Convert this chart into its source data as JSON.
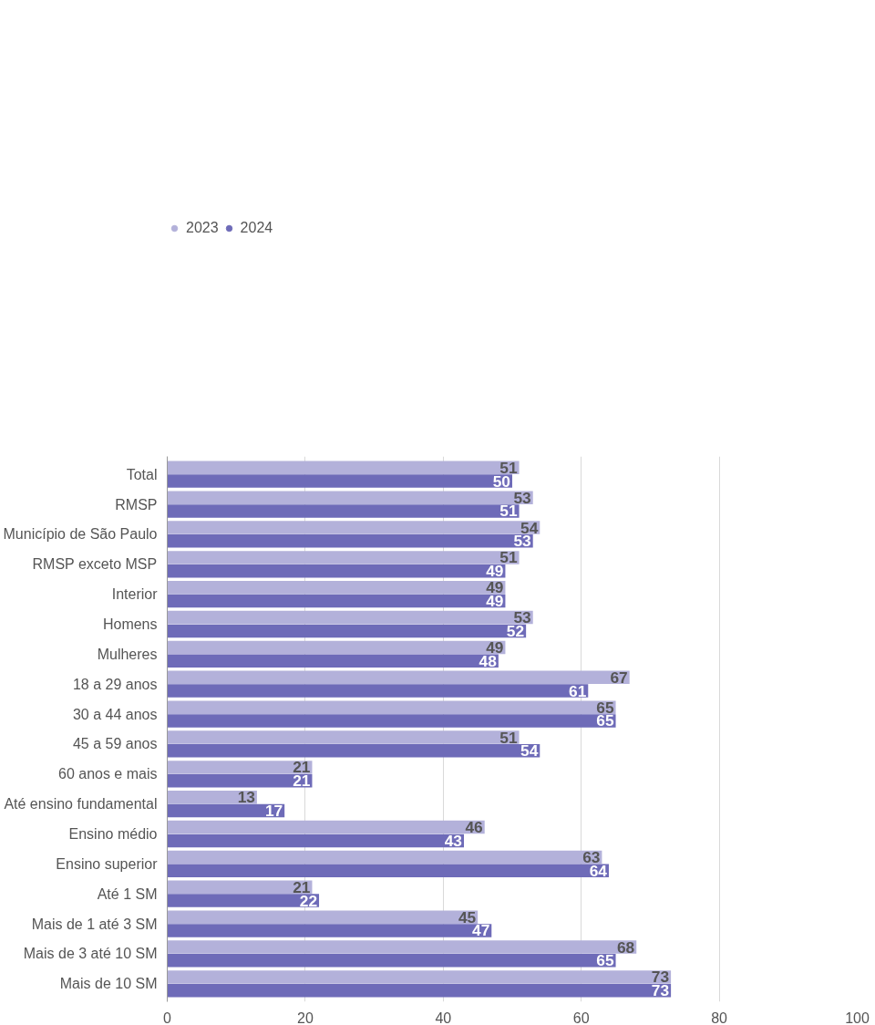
{
  "chart_data": {
    "type": "bar",
    "orientation": "horizontal",
    "categories": [
      "Total",
      "RMSP",
      "Município de São Paulo",
      "RMSP exceto MSP",
      "Interior",
      "Homens",
      "Mulheres",
      "18 a 29 anos",
      "30 a 44 anos",
      "45 a 59 anos",
      "60 anos e mais",
      "Até ensino fundamental",
      "Ensino médio",
      "Ensino superior",
      "Até 1 SM",
      "Mais de 1 até 3 SM",
      "Mais de 3 até 10 SM",
      "Mais de 10 SM"
    ],
    "series": [
      {
        "name": "2023",
        "color": "#b3b1da",
        "values": [
          51,
          53,
          54,
          51,
          49,
          53,
          49,
          67,
          65,
          51,
          21,
          13,
          46,
          63,
          21,
          45,
          68,
          73
        ]
      },
      {
        "name": "2024",
        "color": "#6e6bb8",
        "values": [
          50,
          51,
          53,
          49,
          49,
          52,
          48,
          61,
          65,
          54,
          21,
          17,
          43,
          64,
          22,
          47,
          65,
          73
        ]
      }
    ],
    "xlim": [
      0,
      100
    ],
    "xticks": [
      0,
      20,
      40,
      60,
      80,
      100
    ],
    "grid": "x",
    "legend": "top left",
    "data_labels": true
  }
}
